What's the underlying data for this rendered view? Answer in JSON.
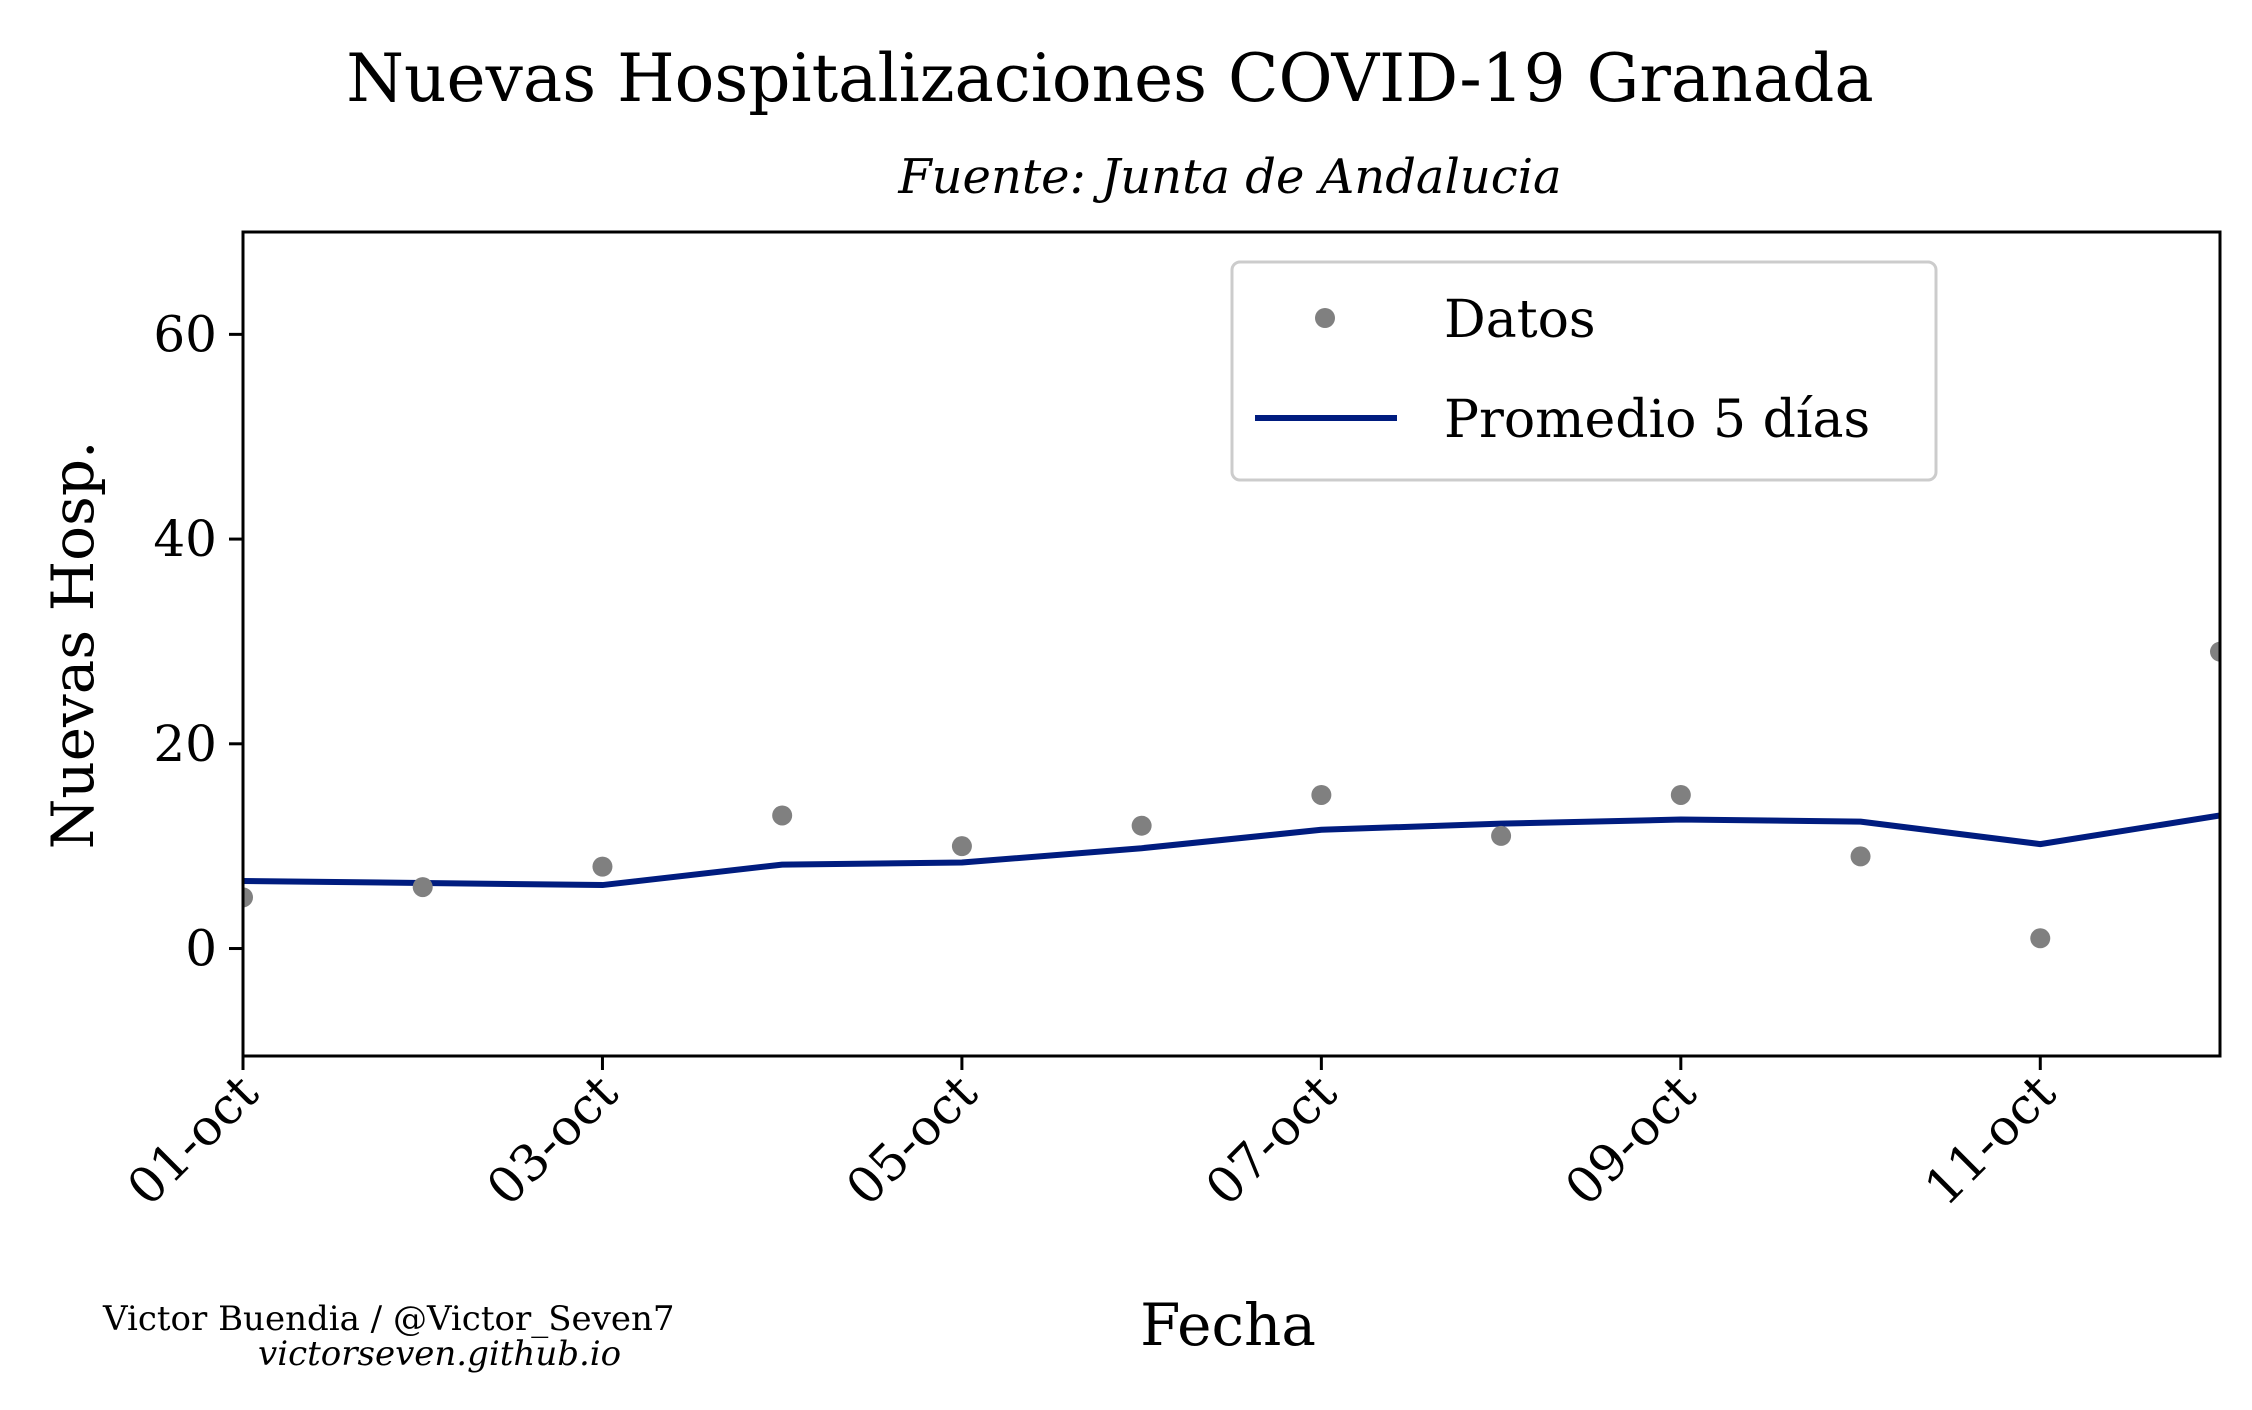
{
  "chart_data": {
    "type": "line",
    "title": "Nuevas Hospitalizaciones COVID-19 Granada",
    "subtitle": "Fuente: Junta de Andalucia",
    "xlabel": "Fecha",
    "ylabel": "Nuevas Hosp.",
    "x": [
      "01-oct",
      "02-oct",
      "03-oct",
      "04-oct",
      "05-oct",
      "06-oct",
      "07-oct",
      "08-oct",
      "09-oct",
      "10-oct",
      "11-oct",
      "12-oct"
    ],
    "x_tick_labels": [
      "01-oct",
      "03-oct",
      "05-oct",
      "07-oct",
      "09-oct",
      "11-oct"
    ],
    "y_ticks": [
      0,
      20,
      40,
      60
    ],
    "ylim": [
      -10.5,
      70
    ],
    "grid": false,
    "legend_position": "top-right",
    "series": [
      {
        "name": "Datos",
        "kind": "scatter",
        "color": "#808080",
        "values": [
          5,
          6,
          8,
          13,
          10,
          12,
          15,
          11,
          15,
          9,
          1,
          29
        ]
      },
      {
        "name": "Promedio 5 días",
        "kind": "line",
        "color": "#001c7f",
        "values": [
          6.6,
          6.4,
          6.2,
          8.2,
          8.4,
          9.8,
          11.6,
          12.2,
          12.6,
          12.4,
          10.2,
          13.0
        ]
      }
    ]
  },
  "credits": {
    "line1": "Victor Buendia / @Victor_Seven7",
    "line2": "victorseven.github.io"
  }
}
